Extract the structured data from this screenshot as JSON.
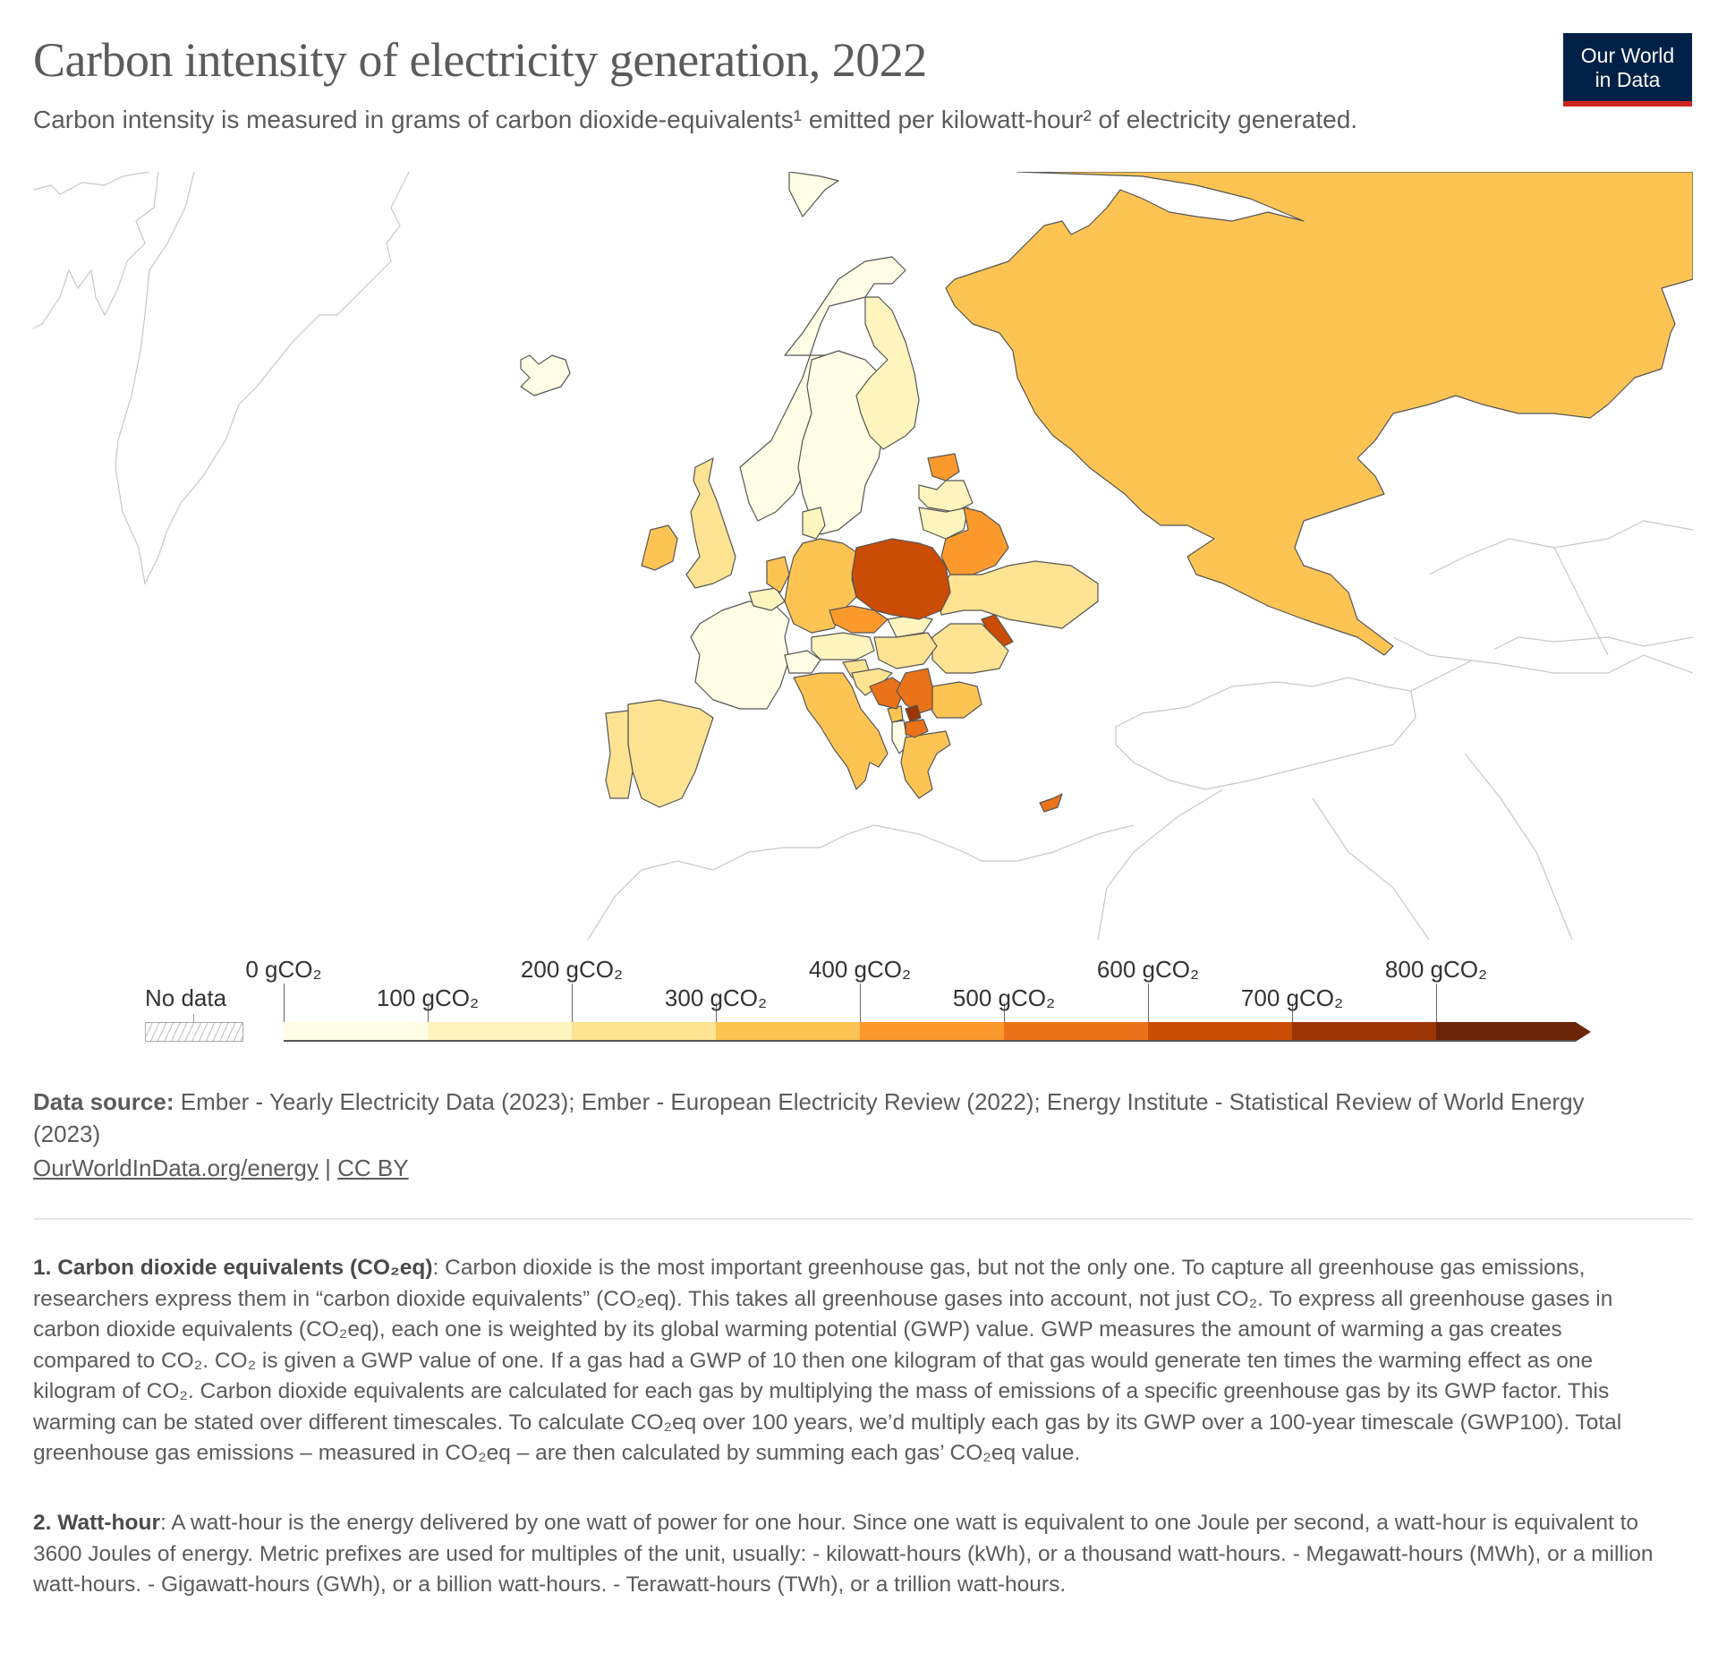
{
  "header": {
    "title": "Carbon intensity of electricity generation, 2022",
    "subtitle": "Carbon intensity is measured in grams of carbon dioxide-equivalents¹ emitted per kilowatt-hour² of electricity generated.",
    "logo_line1": "Our World",
    "logo_line2": "in Data"
  },
  "legend": {
    "no_data_label": "No data",
    "bins": [
      {
        "from": 0,
        "to": 100,
        "color": "#fffde6"
      },
      {
        "from": 100,
        "to": 200,
        "color": "#fef5be"
      },
      {
        "from": 200,
        "to": 300,
        "color": "#fde392"
      },
      {
        "from": 300,
        "to": 400,
        "color": "#fdc453"
      },
      {
        "from": 400,
        "to": 500,
        "color": "#fb992d"
      },
      {
        "from": 500,
        "to": 600,
        "color": "#ea7218"
      },
      {
        "from": 600,
        "to": 700,
        "color": "#cb4c04"
      },
      {
        "from": 700,
        "to": 800,
        "color": "#9b3505"
      },
      {
        "from": 800,
        "to": null,
        "color": "#6a2508"
      }
    ],
    "tick_labels": [
      "0 gCO₂",
      "100 gCO₂",
      "200 gCO₂",
      "300 gCO₂",
      "400 gCO₂",
      "500 gCO₂",
      "600 gCO₂",
      "700 gCO₂",
      "800 gCO₂"
    ]
  },
  "chart_data": {
    "type": "choropleth",
    "title": "Carbon intensity of electricity generation, 2022",
    "unit": "gCO₂ per kWh",
    "region": "Europe",
    "no_data_color": "#ffffff",
    "countries": [
      {
        "name": "Iceland",
        "bin": "0-100"
      },
      {
        "name": "Norway",
        "bin": "0-100"
      },
      {
        "name": "Sweden",
        "bin": "0-100"
      },
      {
        "name": "France",
        "bin": "0-100"
      },
      {
        "name": "Switzerland",
        "bin": "0-100"
      },
      {
        "name": "Albania",
        "bin": "0-100"
      },
      {
        "name": "Svalbard",
        "bin": "0-100"
      },
      {
        "name": "Finland",
        "bin": "100-200"
      },
      {
        "name": "Denmark",
        "bin": "100-200"
      },
      {
        "name": "Latvia",
        "bin": "100-200"
      },
      {
        "name": "Lithuania",
        "bin": "100-200"
      },
      {
        "name": "Belgium",
        "bin": "100-200"
      },
      {
        "name": "Austria",
        "bin": "100-200"
      },
      {
        "name": "Slovakia",
        "bin": "100-200"
      },
      {
        "name": "United Kingdom",
        "bin": "200-300"
      },
      {
        "name": "Spain",
        "bin": "200-300"
      },
      {
        "name": "Portugal",
        "bin": "200-300"
      },
      {
        "name": "Ukraine",
        "bin": "200-300"
      },
      {
        "name": "Romania",
        "bin": "200-300"
      },
      {
        "name": "Hungary",
        "bin": "200-300"
      },
      {
        "name": "Slovenia",
        "bin": "200-300"
      },
      {
        "name": "Croatia",
        "bin": "200-300"
      },
      {
        "name": "Russia",
        "bin": "300-400"
      },
      {
        "name": "Germany",
        "bin": "300-400"
      },
      {
        "name": "Netherlands",
        "bin": "300-400"
      },
      {
        "name": "Ireland",
        "bin": "300-400"
      },
      {
        "name": "Italy",
        "bin": "300-400"
      },
      {
        "name": "Greece",
        "bin": "300-400"
      },
      {
        "name": "Bulgaria",
        "bin": "300-400"
      },
      {
        "name": "Montenegro",
        "bin": "300-400"
      },
      {
        "name": "Estonia",
        "bin": "400-500"
      },
      {
        "name": "Belarus",
        "bin": "400-500"
      },
      {
        "name": "Czechia",
        "bin": "400-500"
      },
      {
        "name": "Bosnia and Herzegovina",
        "bin": "500-600"
      },
      {
        "name": "Serbia",
        "bin": "500-600"
      },
      {
        "name": "North Macedonia",
        "bin": "500-600"
      },
      {
        "name": "Cyprus",
        "bin": "500-600"
      },
      {
        "name": "Poland",
        "bin": "600-700"
      },
      {
        "name": "Moldova",
        "bin": "600-700"
      },
      {
        "name": "Kosovo",
        "bin": "700-800"
      }
    ]
  },
  "footer": {
    "source_label": "Data source:",
    "source_text": "Ember - Yearly Electricity Data (2023); Ember - European Electricity Review (2022); Energy Institute - Statistical Review of World Energy (2023)",
    "link_text": "OurWorldInData.org/energy",
    "separator": "|",
    "license_text": "CC BY"
  },
  "notes": [
    {
      "heading": "1. Carbon dioxide equivalents (CO₂eq)",
      "text": ": Carbon dioxide is the most important greenhouse gas, but not the only one. To capture all greenhouse gas emissions, researchers express them in “carbon dioxide equivalents” (CO₂eq). This takes all greenhouse gases into account, not just CO₂. To express all greenhouse gases in carbon dioxide equivalents (CO₂eq), each one is weighted by its global warming potential (GWP) value. GWP measures the amount of warming a gas creates compared to CO₂. CO₂ is given a GWP value of one. If a gas had a GWP of 10 then one kilogram of that gas would generate ten times the warming effect as one kilogram of CO₂. Carbon dioxide equivalents are calculated for each gas by multiplying the mass of emissions of a specific greenhouse gas by its GWP factor. This warming can be stated over different timescales. To calculate CO₂eq over 100 years, we’d multiply each gas by its GWP over a 100-year timescale (GWP100). Total greenhouse gas emissions – measured in CO₂eq – are then calculated by summing each gas’ CO₂eq value."
    },
    {
      "heading": "2. Watt-hour",
      "text": ": A watt-hour is the energy delivered by one watt of power for one hour. Since one watt is equivalent to one Joule per second, a watt-hour is equivalent to 3600 Joules of energy. Metric prefixes are used for multiples of the unit, usually: - kilowatt-hours (kWh), or a thousand watt-hours. - Megawatt-hours (MWh), or a million watt-hours. - Gigawatt-hours (GWh), or a billion watt-hours. - Terawatt-hours (TWh), or a trillion watt-hours."
    }
  ]
}
